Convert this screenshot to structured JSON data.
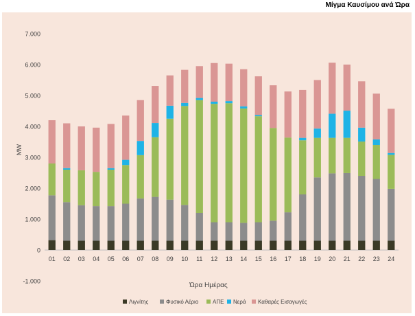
{
  "title": "Μίγμα Καυσίμου ανά Ώρα",
  "chart_data": {
    "type": "bar",
    "stacked": true,
    "title": "Μίγμα Καυσίμου ανά Ώρα",
    "xlabel": "Ώρα Ημέρας",
    "ylabel": "MW",
    "ylim": [
      -1000,
      7000
    ],
    "ytick_values": [
      -1000,
      0,
      1000,
      2000,
      3000,
      4000,
      5000,
      6000,
      7000
    ],
    "ytick_labels": [
      "-1.000",
      "0",
      "1.000",
      "2.000",
      "3.000",
      "4.000",
      "5.000",
      "6.000",
      "7.000"
    ],
    "grid": false,
    "legend": "bottom",
    "categories": [
      "01",
      "02",
      "03",
      "04",
      "05",
      "06",
      "07",
      "08",
      "09",
      "10",
      "11",
      "12",
      "13",
      "14",
      "15",
      "16",
      "17",
      "18",
      "19",
      "20",
      "21",
      "22",
      "23",
      "24"
    ],
    "series": [
      {
        "name": "Λιγνίτης",
        "color": "#3b3a26",
        "values": [
          320,
          300,
          300,
          300,
          300,
          300,
          300,
          300,
          300,
          300,
          300,
          300,
          300,
          300,
          300,
          300,
          300,
          300,
          300,
          300,
          300,
          300,
          300,
          300
        ]
      },
      {
        "name": "Φυσικό Αέριο",
        "color": "#8c8c8c",
        "values": [
          1450,
          1250,
          1150,
          1120,
          1120,
          1200,
          1370,
          1420,
          1330,
          1160,
          900,
          600,
          600,
          580,
          600,
          650,
          920,
          1500,
          2050,
          2180,
          2190,
          2100,
          2000,
          1680
        ]
      },
      {
        "name": "ΑΠΕ",
        "color": "#9bbb59",
        "values": [
          1030,
          1050,
          1130,
          1110,
          1180,
          1250,
          1400,
          1930,
          2620,
          3200,
          3650,
          3830,
          3850,
          3700,
          3430,
          3000,
          2420,
          1750,
          1280,
          1150,
          1140,
          1110,
          1100,
          1100
        ]
      },
      {
        "name": "Νερά",
        "color": "#1fb3e6",
        "values": [
          0,
          50,
          0,
          0,
          50,
          170,
          460,
          460,
          420,
          100,
          70,
          70,
          70,
          70,
          40,
          0,
          0,
          80,
          300,
          780,
          880,
          450,
          180,
          60
        ]
      },
      {
        "name": "Καθαρές Εισαγωγές",
        "color": "#da9694",
        "values": [
          1400,
          1450,
          1420,
          1430,
          1430,
          1430,
          1320,
          1200,
          980,
          1070,
          1030,
          1250,
          1210,
          1200,
          1250,
          1380,
          1490,
          1550,
          1570,
          1650,
          1490,
          1500,
          1480,
          1430
        ]
      }
    ]
  }
}
